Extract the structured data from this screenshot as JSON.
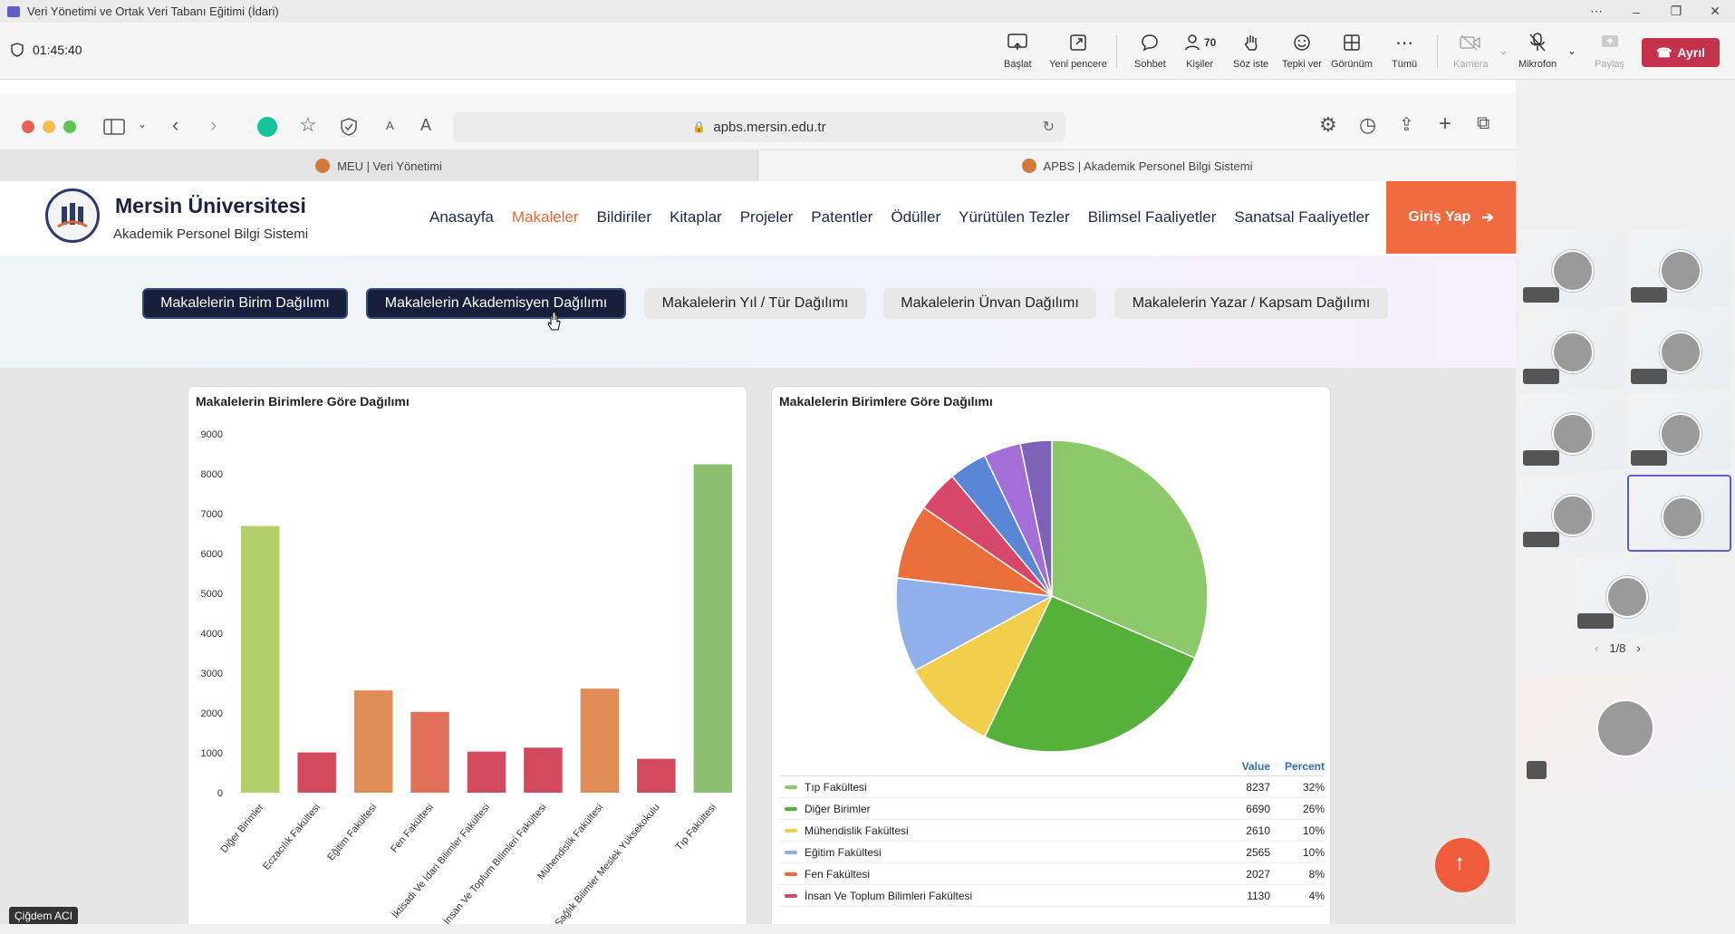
{
  "window": {
    "title": "Veri Yönetimi ve Ortak Veri Tabanı Eğitimi (İdari)"
  },
  "call": {
    "timer": "01:45:40",
    "controls": [
      {
        "label": "Başlat",
        "icon": "present-icon"
      },
      {
        "label": "Yeni pencere",
        "icon": "new-window-icon"
      },
      {
        "label": "Sohbet",
        "icon": "chat-icon"
      },
      {
        "label": "Kişiler",
        "icon": "people-icon",
        "count": "70"
      },
      {
        "label": "Söz iste",
        "icon": "raise-hand-icon"
      },
      {
        "label": "Tepki ver",
        "icon": "reaction-icon"
      },
      {
        "label": "Görünüm",
        "icon": "view-icon"
      },
      {
        "label": "Tümü",
        "icon": "more-icon"
      },
      {
        "label": "Kamera",
        "icon": "camera-off-icon"
      },
      {
        "label": "Mikrofon",
        "icon": "mic-off-icon"
      },
      {
        "label": "Paylaş",
        "icon": "share-icon"
      }
    ],
    "leave_label": "Ayrıl",
    "pager": "1/8",
    "presenter_caption": "Çiğdem ACI"
  },
  "browser": {
    "url": "apbs.mersin.edu.tr",
    "tabs": [
      "MEU | Veri Yönetimi",
      "APBS | Akademik Personel Bilgi Sistemi"
    ]
  },
  "site": {
    "title": "Mersin Üniversitesi",
    "subtitle": "Akademik Personel Bilgi Sistemi",
    "nav": [
      "Anasayfa",
      "Makaleler",
      "Bildiriler",
      "Kitaplar",
      "Projeler",
      "Patentler",
      "Ödüller",
      "Yürütülen Tezler",
      "Bilimsel Faaliyetler",
      "Sanatsal Faaliyetler"
    ],
    "nav_active": "Makaleler",
    "login": "Giriş Yap",
    "filters": [
      "Makalelerin Birim Dağılımı",
      "Makalelerin Akademisyen Dağılımı",
      "Makalelerin Yıl / Tür Dağılımı",
      "Makalelerin Ünvan Dağılımı",
      "Makalelerin Yazar / Kapsam Dağılımı"
    ],
    "legend_headers": {
      "value": "Value",
      "percent": "Percent"
    }
  },
  "chart_data": [
    {
      "type": "bar",
      "title": "Makalelerin Birimlere Göre Dağılımı",
      "categories": [
        "Diğer Birimler",
        "Eczacılık Fakültesi",
        "Eğitim Fakültesi",
        "Fen Fakültesi",
        "İktisadi Ve İdari Bilimler Fakültesi",
        "İnsan Ve Toplum Bilimleri Fakültesi",
        "Mühendislik Fakültesi",
        "Sağlık Bilimler Meslek Yüksekokulu",
        "Tıp Fakültesi"
      ],
      "values": [
        6690,
        1010,
        2565,
        2027,
        1030,
        1130,
        2610,
        850,
        8237
      ],
      "colors": [
        "#b3cf6a",
        "#d24a5e",
        "#e08d58",
        "#e0705a",
        "#d24a5e",
        "#d24a5e",
        "#e08d58",
        "#d24a5e",
        "#8cc071"
      ],
      "ylim": [
        0,
        9000
      ],
      "yticks": [
        0,
        1000,
        2000,
        3000,
        4000,
        5000,
        6000,
        7000,
        8000,
        9000
      ]
    },
    {
      "type": "pie",
      "title": "Makalelerin Birimlere Göre Dağılımı",
      "slices": [
        {
          "name": "Tıp Fakültesi",
          "value": 8237,
          "percent": "32%",
          "color": "#8cc96a"
        },
        {
          "name": "Diğer Birimler",
          "value": 6690,
          "percent": "26%",
          "color": "#55b13a"
        },
        {
          "name": "Mühendislik Fakültesi",
          "value": 2610,
          "percent": "10%",
          "color": "#f2cf4a"
        },
        {
          "name": "Eğitim Fakültesi",
          "value": 2565,
          "percent": "10%",
          "color": "#8fb0ea"
        },
        {
          "name": "Fen Fakültesi",
          "value": 2027,
          "percent": "8%",
          "color": "#e86f3a"
        },
        {
          "name": "İnsan Ve Toplum Bilimleri Fakültesi",
          "value": 1130,
          "percent": "4%",
          "color": "#d6476a"
        },
        {
          "name": "",
          "value": 1030,
          "percent": "4%",
          "color": "#5a86d6"
        },
        {
          "name": "",
          "value": 1010,
          "percent": "",
          "color": "#a46ed8"
        },
        {
          "name": "",
          "value": 850,
          "percent": "",
          "color": "#7e62b8"
        }
      ]
    }
  ]
}
